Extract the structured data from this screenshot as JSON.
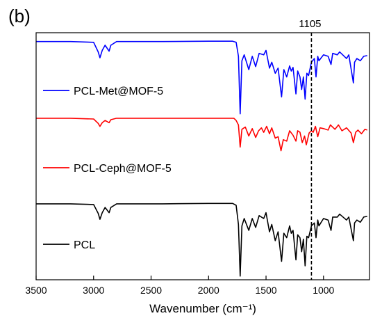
{
  "panel_label": "(b)",
  "chart_data": {
    "type": "line",
    "xlabel": "Wavenumber (cm⁻¹)",
    "ylabel": "",
    "xlim": [
      3500,
      600
    ],
    "x_reversed": true,
    "y_ticks_shown": false,
    "grid": false,
    "x_ticks": [
      "3500",
      "3000",
      "2500",
      "2000",
      "1500",
      "1000"
    ],
    "reference_line": {
      "x": 1105,
      "label": "1105",
      "style": "dashed"
    },
    "series": [
      {
        "name": "PCL-Met@MOF-5",
        "color": "#0000ff",
        "offset": 2.2,
        "points": [
          [
            3500,
            0.98
          ],
          [
            3200,
            0.98
          ],
          [
            3000,
            0.97
          ],
          [
            2960,
            0.84
          ],
          [
            2945,
            0.76
          ],
          [
            2925,
            0.86
          ],
          [
            2900,
            0.93
          ],
          [
            2865,
            0.85
          ],
          [
            2850,
            0.93
          ],
          [
            2800,
            0.98
          ],
          [
            2400,
            0.98
          ],
          [
            2000,
            0.985
          ],
          [
            1790,
            0.985
          ],
          [
            1760,
            0.97
          ],
          [
            1740,
            0.78
          ],
          [
            1725,
            0.0
          ],
          [
            1710,
            0.72
          ],
          [
            1690,
            0.8
          ],
          [
            1650,
            0.6
          ],
          [
            1620,
            0.78
          ],
          [
            1590,
            0.64
          ],
          [
            1560,
            0.82
          ],
          [
            1520,
            0.8
          ],
          [
            1500,
            0.86
          ],
          [
            1470,
            0.62
          ],
          [
            1450,
            0.7
          ],
          [
            1420,
            0.55
          ],
          [
            1395,
            0.62
          ],
          [
            1365,
            0.23
          ],
          [
            1345,
            0.6
          ],
          [
            1320,
            0.5
          ],
          [
            1295,
            0.65
          ],
          [
            1280,
            0.58
          ],
          [
            1265,
            0.63
          ],
          [
            1240,
            0.27
          ],
          [
            1225,
            0.58
          ],
          [
            1205,
            0.5
          ],
          [
            1190,
            0.33
          ],
          [
            1175,
            0.5
          ],
          [
            1160,
            0.2
          ],
          [
            1145,
            0.55
          ],
          [
            1130,
            0.52
          ],
          [
            1105,
            0.7
          ],
          [
            1080,
            0.75
          ],
          [
            1065,
            0.5
          ],
          [
            1050,
            0.78
          ],
          [
            1040,
            0.72
          ],
          [
            1000,
            0.8
          ],
          [
            960,
            0.78
          ],
          [
            935,
            0.67
          ],
          [
            920,
            0.82
          ],
          [
            880,
            0.8
          ],
          [
            860,
            0.84
          ],
          [
            800,
            0.75
          ],
          [
            780,
            0.8
          ],
          [
            740,
            0.42
          ],
          [
            730,
            0.7
          ],
          [
            710,
            0.75
          ],
          [
            680,
            0.72
          ],
          [
            650,
            0.78
          ],
          [
            620,
            0.79
          ]
        ]
      },
      {
        "name": "PCL-Ceph@MOF-5",
        "color": "#ff0000",
        "offset": 1.15,
        "points": [
          [
            3500,
            0.99
          ],
          [
            3200,
            0.99
          ],
          [
            3000,
            0.98
          ],
          [
            2960,
            0.92
          ],
          [
            2945,
            0.88
          ],
          [
            2925,
            0.93
          ],
          [
            2900,
            0.96
          ],
          [
            2865,
            0.93
          ],
          [
            2850,
            0.97
          ],
          [
            2800,
            0.99
          ],
          [
            2400,
            0.99
          ],
          [
            2000,
            0.99
          ],
          [
            1780,
            0.99
          ],
          [
            1760,
            0.96
          ],
          [
            1740,
            0.9
          ],
          [
            1725,
            0.6
          ],
          [
            1710,
            0.84
          ],
          [
            1680,
            0.87
          ],
          [
            1650,
            0.75
          ],
          [
            1620,
            0.85
          ],
          [
            1590,
            0.73
          ],
          [
            1565,
            0.82
          ],
          [
            1540,
            0.86
          ],
          [
            1520,
            0.8
          ],
          [
            1495,
            0.88
          ],
          [
            1470,
            0.78
          ],
          [
            1450,
            0.86
          ],
          [
            1420,
            0.72
          ],
          [
            1395,
            0.74
          ],
          [
            1370,
            0.55
          ],
          [
            1350,
            0.7
          ],
          [
            1320,
            0.68
          ],
          [
            1295,
            0.82
          ],
          [
            1265,
            0.76
          ],
          [
            1240,
            0.68
          ],
          [
            1225,
            0.82
          ],
          [
            1205,
            0.8
          ],
          [
            1185,
            0.66
          ],
          [
            1165,
            0.75
          ],
          [
            1150,
            0.63
          ],
          [
            1125,
            0.79
          ],
          [
            1105,
            0.82
          ],
          [
            1090,
            0.8
          ],
          [
            1070,
            0.88
          ],
          [
            1050,
            0.74
          ],
          [
            1030,
            0.86
          ],
          [
            1000,
            0.85
          ],
          [
            960,
            0.83
          ],
          [
            940,
            0.9
          ],
          [
            900,
            0.84
          ],
          [
            870,
            0.9
          ],
          [
            840,
            0.82
          ],
          [
            800,
            0.86
          ],
          [
            760,
            0.79
          ],
          [
            740,
            0.66
          ],
          [
            720,
            0.8
          ],
          [
            700,
            0.83
          ],
          [
            670,
            0.78
          ],
          [
            640,
            0.84
          ],
          [
            620,
            0.83
          ]
        ]
      },
      {
        "name": "PCL",
        "color": "#000000",
        "offset": 0.0,
        "points": [
          [
            3500,
            0.98
          ],
          [
            3200,
            0.98
          ],
          [
            3000,
            0.97
          ],
          [
            2960,
            0.85
          ],
          [
            2945,
            0.77
          ],
          [
            2925,
            0.86
          ],
          [
            2900,
            0.93
          ],
          [
            2865,
            0.86
          ],
          [
            2850,
            0.93
          ],
          [
            2800,
            0.98
          ],
          [
            2400,
            0.98
          ],
          [
            2000,
            0.985
          ],
          [
            1790,
            0.985
          ],
          [
            1760,
            0.96
          ],
          [
            1740,
            0.7
          ],
          [
            1725,
            0.0
          ],
          [
            1710,
            0.68
          ],
          [
            1690,
            0.78
          ],
          [
            1650,
            0.62
          ],
          [
            1620,
            0.78
          ],
          [
            1590,
            0.66
          ],
          [
            1560,
            0.82
          ],
          [
            1520,
            0.78
          ],
          [
            1500,
            0.86
          ],
          [
            1470,
            0.6
          ],
          [
            1450,
            0.7
          ],
          [
            1420,
            0.48
          ],
          [
            1395,
            0.6
          ],
          [
            1365,
            0.2
          ],
          [
            1345,
            0.58
          ],
          [
            1320,
            0.52
          ],
          [
            1295,
            0.68
          ],
          [
            1280,
            0.58
          ],
          [
            1265,
            0.62
          ],
          [
            1240,
            0.22
          ],
          [
            1225,
            0.56
          ],
          [
            1205,
            0.52
          ],
          [
            1190,
            0.33
          ],
          [
            1175,
            0.5
          ],
          [
            1160,
            0.14
          ],
          [
            1145,
            0.54
          ],
          [
            1130,
            0.52
          ],
          [
            1105,
            0.68
          ],
          [
            1080,
            0.72
          ],
          [
            1065,
            0.52
          ],
          [
            1050,
            0.76
          ],
          [
            1040,
            0.68
          ],
          [
            1000,
            0.78
          ],
          [
            960,
            0.76
          ],
          [
            935,
            0.62
          ],
          [
            920,
            0.8
          ],
          [
            880,
            0.8
          ],
          [
            860,
            0.84
          ],
          [
            800,
            0.76
          ],
          [
            780,
            0.8
          ],
          [
            740,
            0.48
          ],
          [
            730,
            0.72
          ],
          [
            710,
            0.76
          ],
          [
            680,
            0.73
          ],
          [
            650,
            0.8
          ],
          [
            620,
            0.81
          ]
        ]
      }
    ]
  }
}
